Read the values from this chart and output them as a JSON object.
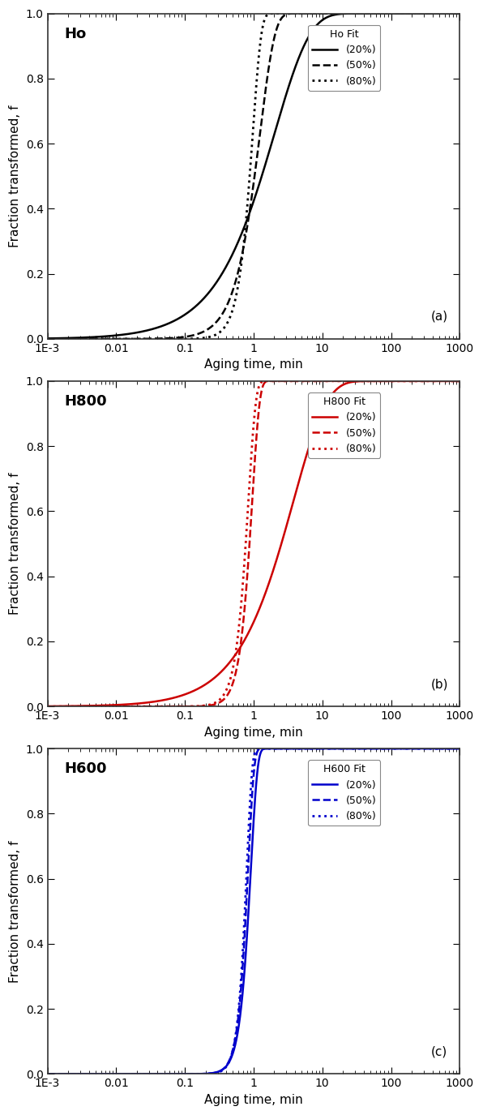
{
  "panels": [
    {
      "label": "Ho",
      "panel_letter": "(a)",
      "color": "#000000",
      "legend_title": "Ho Fit",
      "curves": [
        {
          "linestyle": "solid",
          "label": "(20%)",
          "n": 0.85,
          "k": 0.55,
          "lw": 1.8
        },
        {
          "linestyle": "dashed",
          "label": "(50%)",
          "n": 2.0,
          "k": 0.65,
          "lw": 1.8
        },
        {
          "linestyle": "dotted",
          "label": "(80%)",
          "n": 3.5,
          "k": 1.1,
          "lw": 2.0
        }
      ]
    },
    {
      "label": "H800",
      "panel_letter": "(b)",
      "color": "#cc0000",
      "legend_title": "H800 Fit",
      "curves": [
        {
          "linestyle": "solid",
          "label": "(20%)",
          "n": 0.9,
          "k": 0.3,
          "lw": 1.8
        },
        {
          "linestyle": "dashed",
          "label": "(50%)",
          "n": 4.0,
          "k": 1.2,
          "lw": 1.8
        },
        {
          "linestyle": "dotted",
          "label": "(80%)",
          "n": 4.0,
          "k": 2.0,
          "lw": 2.0
        }
      ]
    },
    {
      "label": "H600",
      "panel_letter": "(c)",
      "color": "#0000cc",
      "legend_title": "H600 Fit",
      "curves": [
        {
          "linestyle": "solid",
          "label": "(20%)",
          "n": 4.5,
          "k": 1.5,
          "lw": 1.8
        },
        {
          "linestyle": "dashed",
          "label": "(50%)",
          "n": 5.0,
          "k": 2.5,
          "lw": 1.8
        },
        {
          "linestyle": "dotted",
          "label": "(80%)",
          "n": 5.5,
          "k": 3.5,
          "lw": 2.0
        }
      ]
    }
  ],
  "xlim": [
    0.001,
    1000
  ],
  "ylim": [
    0.0,
    1.0
  ],
  "xlabel": "Aging time, min",
  "ylabel": "Fraction transformed, f",
  "yticks": [
    0.0,
    0.2,
    0.4,
    0.6,
    0.8,
    1.0
  ],
  "xtick_positions": [
    0.001,
    0.01,
    0.1,
    1,
    10,
    100,
    1000
  ],
  "xtick_labels": [
    "1E-3",
    "0.01",
    "0.1",
    "1",
    "10",
    "100",
    "1000"
  ],
  "background_color": "#ffffff",
  "fontsize_label": 11,
  "fontsize_tick": 10,
  "fontsize_legend": 9,
  "fontsize_panel_letter": 11,
  "fontsize_steel_label": 13
}
